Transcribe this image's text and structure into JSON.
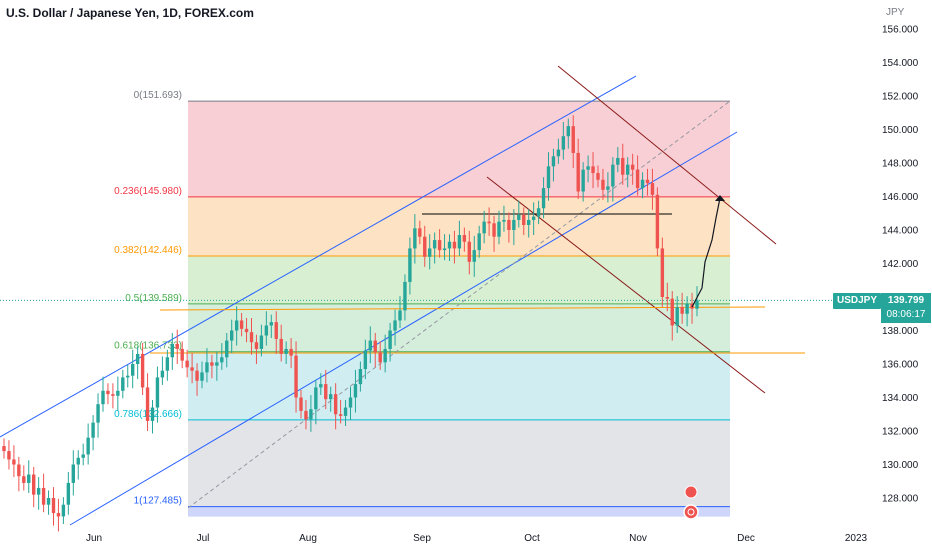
{
  "header": {
    "title": "U.S. Dollar / Japanese Yen, 1D, FOREX.com",
    "unit": "JPY"
  },
  "price_tag": {
    "symbol": "USDJPY",
    "price": "139.799",
    "countdown": "08:06:17"
  },
  "colors": {
    "up": "#26a69a",
    "down": "#ef5350",
    "blue_line": "#2962ff",
    "red_line": "#8b1a1a"
  },
  "chart_data": {
    "type": "candlestick",
    "y_ticks": [
      "156.000",
      "154.000",
      "152.000",
      "150.000",
      "148.000",
      "146.000",
      "144.000",
      "142.000",
      "140.000",
      "138.000",
      "136.000",
      "134.000",
      "132.000",
      "130.000",
      "128.000"
    ],
    "y_range": [
      126.5,
      157
    ],
    "x_ticks": [
      "Jun",
      "Jul",
      "Aug",
      "Sep",
      "Oct",
      "Nov",
      "Dec",
      "2023"
    ],
    "fib_levels": [
      {
        "label": "0(151.693)",
        "price": 151.693,
        "color": "#787b86",
        "fill": "#f8cfd4"
      },
      {
        "label": "0.236(145.980)",
        "price": 145.98,
        "color": "#f23645",
        "fill": "#fde3c3"
      },
      {
        "label": "0.382(142.446)",
        "price": 142.446,
        "color": "#ff9800",
        "fill": "#d8efd2"
      },
      {
        "label": "0.5(139.589)",
        "price": 139.589,
        "color": "#4caf50",
        "fill": "#d5eedc"
      },
      {
        "label": "0.618(136.733)",
        "price": 136.733,
        "color": "#4caf50",
        "fill": "#d0eef1"
      },
      {
        "label": "0.786(132.666)",
        "price": 132.666,
        "color": "#00bcd4",
        "fill": "#e3e4e8"
      },
      {
        "label": "1(127.485)",
        "price": 127.485,
        "color": "#2962ff",
        "fill": "#e3e4e8"
      }
    ],
    "current_price": 139.799,
    "closes": [
      130.8,
      130.3,
      130.0,
      129.3,
      128.9,
      129.4,
      128.2,
      128.6,
      127.6,
      128.0,
      127.1,
      126.9,
      127.6,
      128.9,
      130.0,
      130.4,
      130.6,
      131.6,
      132.5,
      133.6,
      134.4,
      134.2,
      134.1,
      134.4,
      135.2,
      135.3,
      136.0,
      136.6,
      134.6,
      132.6,
      133.4,
      135.2,
      135.6,
      136.4,
      137.2,
      136.9,
      136.2,
      135.8,
      135.6,
      135.0,
      135.5,
      136.1,
      135.9,
      136.1,
      136.4,
      137.4,
      138.0,
      138.6,
      138.1,
      137.9,
      137.3,
      136.9,
      137.7,
      138.3,
      138.5,
      137.5,
      136.6,
      136.9,
      136.5,
      134.0,
      133.2,
      132.7,
      133.3,
      134.6,
      134.8,
      133.9,
      134.2,
      133.0,
      132.9,
      133.4,
      134.0,
      134.8,
      135.7,
      136.8,
      137.4,
      136.7,
      136.1,
      136.9,
      138.0,
      138.6,
      139.2,
      140.9,
      142.9,
      144.1,
      143.6,
      142.4,
      142.9,
      143.4,
      142.8,
      142.9,
      143.3,
      142.9,
      143.7,
      143.3,
      142.1,
      142.8,
      143.8,
      144.5,
      144.4,
      143.6,
      144.5,
      144.6,
      144.0,
      144.6,
      144.9,
      144.3,
      144.6,
      144.8,
      145.3,
      146.5,
      147.8,
      148.4,
      148.8,
      149.6,
      150.2,
      148.6,
      146.3,
      147.6,
      147.8,
      147.4,
      147.0,
      146.4,
      146.6,
      147.9,
      148.3,
      147.3,
      147.9,
      147.6,
      146.5,
      147.0,
      146.8,
      146.1,
      142.9,
      140.0,
      139.9,
      138.3,
      139.4,
      139.0,
      139.6,
      139.3,
      139.8
    ]
  }
}
